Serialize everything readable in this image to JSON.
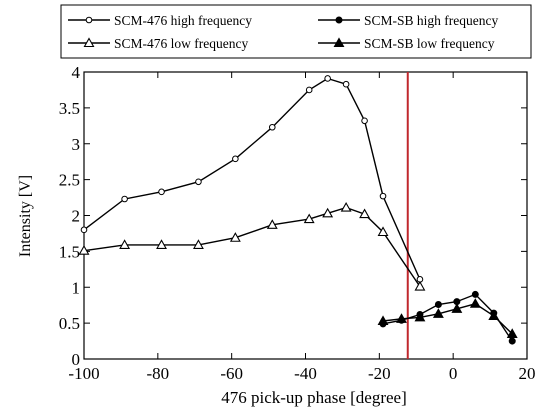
{
  "chart_data": {
    "type": "line",
    "title": "",
    "xlabel": "476 pick-up phase [degree]",
    "ylabel": "Intensity [V]",
    "xlim": [
      -100,
      20
    ],
    "ylim": [
      0,
      4
    ],
    "xticks": [
      -100,
      -80,
      -60,
      -40,
      -20,
      0,
      20
    ],
    "xtick_labels": [
      "-100",
      "-80",
      "-60",
      "-40",
      "-20",
      "0",
      "20"
    ],
    "yticks": [
      0,
      0.5,
      1,
      1.5,
      2,
      2.5,
      3,
      3.5,
      4
    ],
    "ytick_labels": [
      "0",
      "0.5",
      "1",
      "1.5",
      "2",
      "2.5",
      "3",
      "3.5",
      "4"
    ],
    "grid": false,
    "legend_position": "top",
    "vline": {
      "x": -12.3,
      "color": "#c0282d"
    },
    "series": [
      {
        "name": "SCM-476 high frequency",
        "marker": "open-circle",
        "x": [
          -100,
          -89,
          -79,
          -69,
          -59,
          -49,
          -39,
          -34,
          -29,
          -24,
          -19,
          -9
        ],
        "y": [
          1.8,
          2.23,
          2.33,
          2.47,
          2.79,
          3.23,
          3.75,
          3.91,
          3.83,
          3.32,
          2.27,
          1.11
        ]
      },
      {
        "name": "SCM-SB high frequency",
        "marker": "filled-circle",
        "x": [
          -19,
          -14,
          -9,
          -4,
          1,
          6,
          11,
          16
        ],
        "y": [
          0.49,
          0.54,
          0.62,
          0.76,
          0.8,
          0.9,
          0.64,
          0.25
        ]
      },
      {
        "name": "SCM-476 low frequency",
        "marker": "open-triangle",
        "x": [
          -100,
          -89,
          -79,
          -69,
          -59,
          -49,
          -39,
          -34,
          -29,
          -24,
          -19,
          -9
        ],
        "y": [
          1.51,
          1.59,
          1.59,
          1.59,
          1.69,
          1.87,
          1.95,
          2.03,
          2.11,
          2.02,
          1.77,
          1.01
        ]
      },
      {
        "name": "SCM-SB low frequency",
        "marker": "filled-triangle",
        "x": [
          -19,
          -14,
          -9,
          -4,
          1,
          6,
          11,
          16
        ],
        "y": [
          0.53,
          0.56,
          0.58,
          0.63,
          0.7,
          0.77,
          0.6,
          0.35
        ]
      }
    ]
  }
}
